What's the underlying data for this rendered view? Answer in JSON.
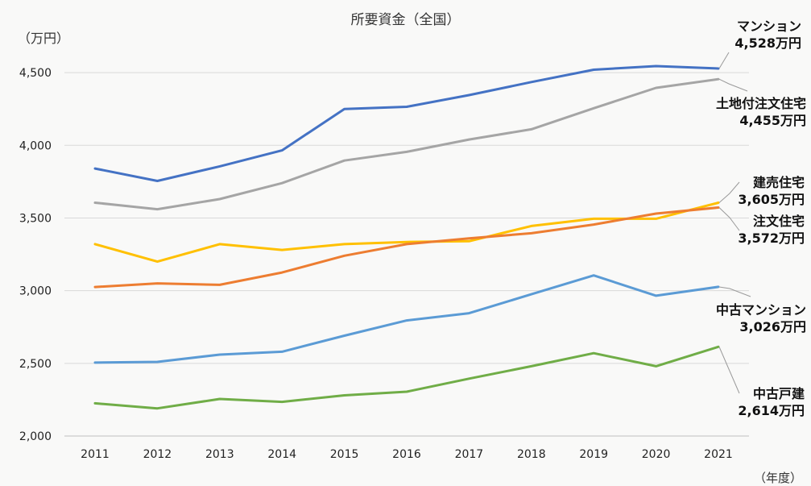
{
  "chart_data": {
    "type": "line",
    "title": "所要資金（全国）",
    "ylabel": "（万円）",
    "xlabel": "（年度）",
    "ylim": [
      2000,
      4750
    ],
    "yticks": [
      2000,
      2500,
      3000,
      3500,
      4000,
      4500
    ],
    "ytick_labels": [
      "2,000",
      "2,500",
      "3,000",
      "3,500",
      "4,000",
      "4,500"
    ],
    "grid": true,
    "categories": [
      "2011",
      "2012",
      "2013",
      "2014",
      "2015",
      "2016",
      "2017",
      "2018",
      "2019",
      "2020",
      "2021"
    ],
    "series": [
      {
        "name": "マンション",
        "color": "#4472c4",
        "values": [
          3840,
          3755,
          3855,
          3965,
          4250,
          4265,
          4345,
          4435,
          4520,
          4545,
          4528
        ],
        "label_value": "4,528万円"
      },
      {
        "name": "土地付注文住宅",
        "color": "#a5a5a5",
        "values": [
          3605,
          3560,
          3630,
          3740,
          3895,
          3955,
          4040,
          4110,
          4255,
          4395,
          4455
        ],
        "label_value": "4,455万円"
      },
      {
        "name": "建売住宅",
        "color": "#ffc000",
        "values": [
          3320,
          3200,
          3320,
          3280,
          3320,
          3335,
          3340,
          3445,
          3495,
          3495,
          3605
        ],
        "label_value": "3,605万円"
      },
      {
        "name": "注文住宅",
        "color": "#ed7d31",
        "values": [
          3025,
          3050,
          3040,
          3125,
          3240,
          3320,
          3360,
          3395,
          3455,
          3530,
          3572
        ],
        "label_value": "3,572万円"
      },
      {
        "name": "中古マンション",
        "color": "#5b9bd5",
        "values": [
          2505,
          2510,
          2560,
          2580,
          2690,
          2795,
          2845,
          2975,
          3105,
          2965,
          3026
        ],
        "label_value": "3,026万円"
      },
      {
        "name": "中古戸建",
        "color": "#70ad47",
        "values": [
          2225,
          2190,
          2255,
          2235,
          2280,
          2305,
          2395,
          2480,
          2570,
          2480,
          2614
        ],
        "label_value": "2,614万円"
      }
    ]
  }
}
